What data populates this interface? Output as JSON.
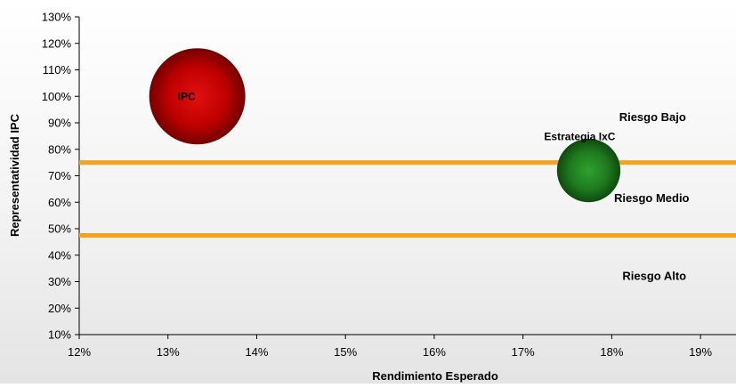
{
  "chart_data": {
    "type": "bubble",
    "title": "",
    "xlabel": "Rendimiento Esperado",
    "ylabel": "Representatividad IPC",
    "xlim": [
      0.12,
      0.194
    ],
    "ylim": [
      0.1,
      1.3
    ],
    "x_ticks": [
      0.12,
      0.13,
      0.14,
      0.15,
      0.16,
      0.17,
      0.18,
      0.19
    ],
    "x_tick_labels": [
      "12%",
      "13%",
      "14%",
      "15%",
      "16%",
      "17%",
      "18%",
      "19%"
    ],
    "y_ticks": [
      0.1,
      0.2,
      0.3,
      0.4,
      0.5,
      0.6,
      0.7,
      0.8,
      0.9,
      1.0,
      1.1,
      1.2,
      1.3
    ],
    "y_tick_labels": [
      "10%",
      "20%",
      "30%",
      "40%",
      "50%",
      "60%",
      "70%",
      "80%",
      "90%",
      "100%",
      "110%",
      "120%",
      "130%"
    ],
    "grid": false,
    "points": [
      {
        "label": "IPC",
        "x": 0.1333,
        "y": 1.0,
        "relative_size": 1.0,
        "color": "#c00000"
      },
      {
        "label": "Estrategia IxC",
        "x": 0.1774,
        "y": 0.72,
        "relative_size": 0.66,
        "color": "#1e7a1e"
      }
    ],
    "threshold_lines": [
      {
        "y": 0.75,
        "color": "#f5a21c"
      },
      {
        "y": 0.475,
        "color": "#f5a21c"
      }
    ],
    "region_labels": [
      {
        "text": "Riesgo Bajo",
        "x": 0.1846,
        "y": 0.92
      },
      {
        "text": "Riesgo Medio",
        "x": 0.1845,
        "y": 0.615
      },
      {
        "text": "Riesgo Alto",
        "x": 0.1848,
        "y": 0.32
      }
    ]
  }
}
